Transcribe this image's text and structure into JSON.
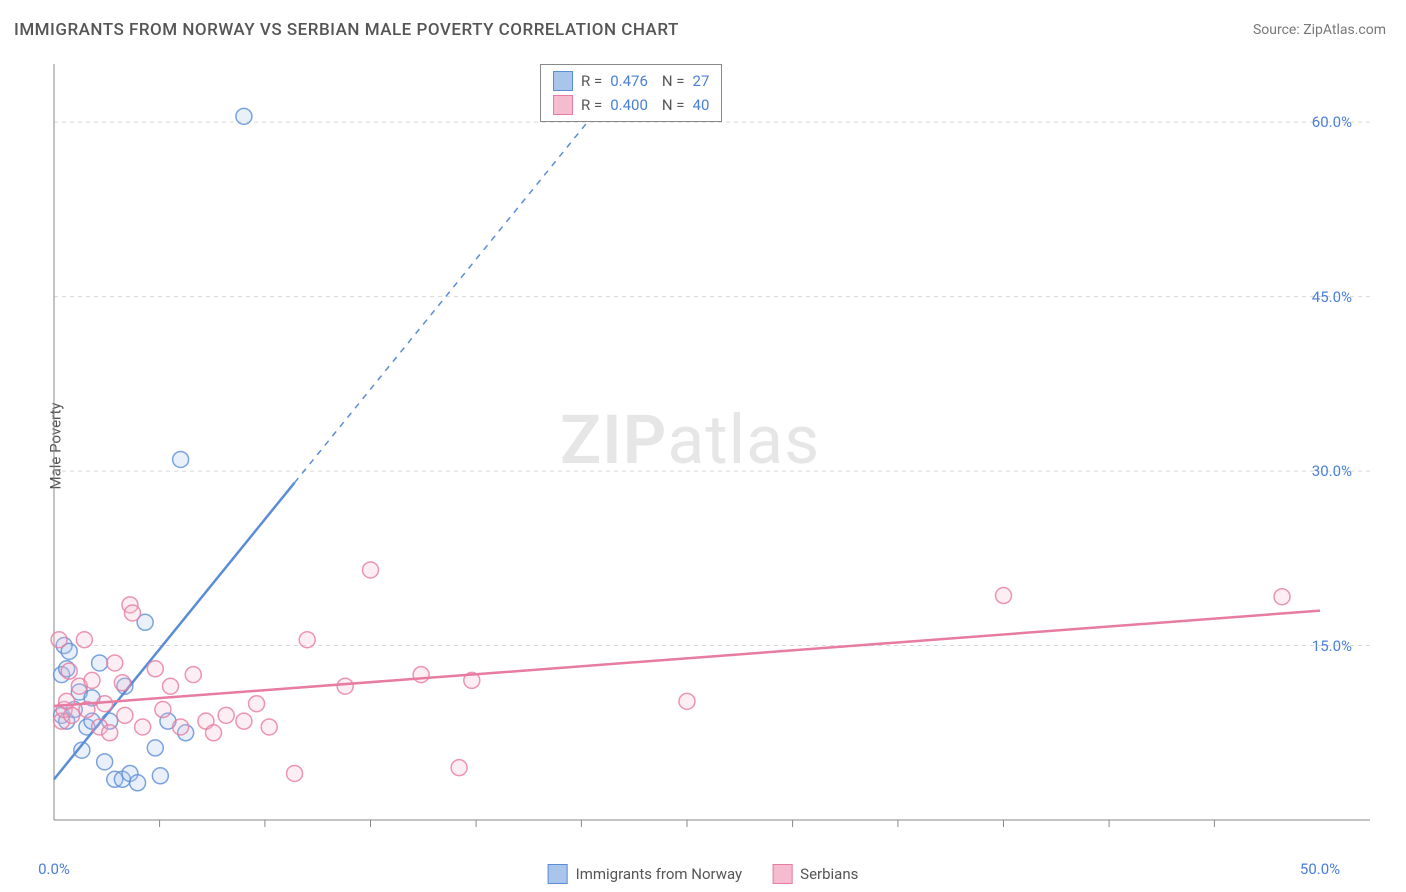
{
  "title": "IMMIGRANTS FROM NORWAY VS SERBIAN MALE POVERTY CORRELATION CHART",
  "source": "Source: ZipAtlas.com",
  "watermark": {
    "zip": "ZIP",
    "atlas": "atlas"
  },
  "y_axis_label": "Male Poverty",
  "chart": {
    "type": "scatter",
    "xlim": [
      0,
      50
    ],
    "ylim": [
      0,
      65
    ],
    "x_ticks": [
      0,
      50
    ],
    "x_tick_labels": [
      "0.0%",
      "50.0%"
    ],
    "x_minor_ticks": [
      4.17,
      8.33,
      12.5,
      16.67,
      20.83,
      25,
      29.17,
      33.33,
      37.5,
      41.67,
      45.83
    ],
    "y_ticks": [
      15,
      30,
      45,
      60
    ],
    "y_tick_labels": [
      "15.0%",
      "30.0%",
      "45.0%",
      "60.0%"
    ],
    "background_color": "#ffffff",
    "grid_color": "#d8d8d8",
    "axis_color": "#888888",
    "marker_radius": 8,
    "marker_opacity_fill": 0.25,
    "marker_opacity_stroke": 0.8,
    "series": [
      {
        "name": "Immigrants from Norway",
        "color": "#5b8dd6",
        "fill": "#a9c5ec",
        "r": 0.476,
        "n": 27,
        "trend_solid": {
          "x1": 0,
          "y1": 3.5,
          "x2": 9.5,
          "y2": 29
        },
        "trend_dash": {
          "x1": 9.5,
          "y1": 29,
          "x2": 22,
          "y2": 62.5
        },
        "points": [
          [
            0.3,
            9
          ],
          [
            0.3,
            12.5
          ],
          [
            0.4,
            15
          ],
          [
            0.5,
            8.5
          ],
          [
            0.5,
            13
          ],
          [
            0.6,
            14.5
          ],
          [
            0.8,
            9.5
          ],
          [
            1.0,
            11
          ],
          [
            1.1,
            6
          ],
          [
            1.3,
            8
          ],
          [
            1.5,
            8.5
          ],
          [
            1.5,
            10.5
          ],
          [
            1.8,
            13.5
          ],
          [
            2.0,
            5
          ],
          [
            2.2,
            8.5
          ],
          [
            2.4,
            3.5
          ],
          [
            2.7,
            3.5
          ],
          [
            2.8,
            11.5
          ],
          [
            3.0,
            4
          ],
          [
            3.3,
            3.2
          ],
          [
            3.6,
            17
          ],
          [
            4.0,
            6.2
          ],
          [
            4.2,
            3.8
          ],
          [
            4.5,
            8.5
          ],
          [
            5.2,
            7.5
          ],
          [
            5.0,
            31
          ],
          [
            7.5,
            60.5
          ]
        ]
      },
      {
        "name": "Serbians",
        "color": "#e77ba0",
        "fill": "#f5bcd0",
        "r": 0.4,
        "n": 40,
        "trend_solid": {
          "x1": 0,
          "y1": 9.8,
          "x2": 50,
          "y2": 18
        },
        "points": [
          [
            0.2,
            15.5
          ],
          [
            0.3,
            8.5
          ],
          [
            0.4,
            9.5
          ],
          [
            0.5,
            10.2
          ],
          [
            0.6,
            12.8
          ],
          [
            0.7,
            9.0
          ],
          [
            1.0,
            11.5
          ],
          [
            1.2,
            15.5
          ],
          [
            1.3,
            9.5
          ],
          [
            1.5,
            12.0
          ],
          [
            1.8,
            8.0
          ],
          [
            2.0,
            10.0
          ],
          [
            2.2,
            7.5
          ],
          [
            2.4,
            13.5
          ],
          [
            2.7,
            11.8
          ],
          [
            2.8,
            9.0
          ],
          [
            3.0,
            18.5
          ],
          [
            3.1,
            17.8
          ],
          [
            3.5,
            8.0
          ],
          [
            4.0,
            13.0
          ],
          [
            4.3,
            9.5
          ],
          [
            4.6,
            11.5
          ],
          [
            5.0,
            8.0
          ],
          [
            5.5,
            12.5
          ],
          [
            6.0,
            8.5
          ],
          [
            6.3,
            7.5
          ],
          [
            6.8,
            9.0
          ],
          [
            7.5,
            8.5
          ],
          [
            8.0,
            10.0
          ],
          [
            9.5,
            4.0
          ],
          [
            10.0,
            15.5
          ],
          [
            11.5,
            11.5
          ],
          [
            12.5,
            21.5
          ],
          [
            14.5,
            12.5
          ],
          [
            16.0,
            4.5
          ],
          [
            16.5,
            12.0
          ],
          [
            25.0,
            10.2
          ],
          [
            37.5,
            19.3
          ],
          [
            48.5,
            19.2
          ],
          [
            8.5,
            8.0
          ]
        ]
      }
    ]
  },
  "legend_top": {
    "r_label": "R =",
    "n_label": "N ="
  },
  "legend_bottom": [
    {
      "label": "Immigrants from Norway",
      "fill": "#a9c5ec",
      "stroke": "#5b8dd6"
    },
    {
      "label": "Serbians",
      "fill": "#f5bcd0",
      "stroke": "#e77ba0"
    }
  ]
}
